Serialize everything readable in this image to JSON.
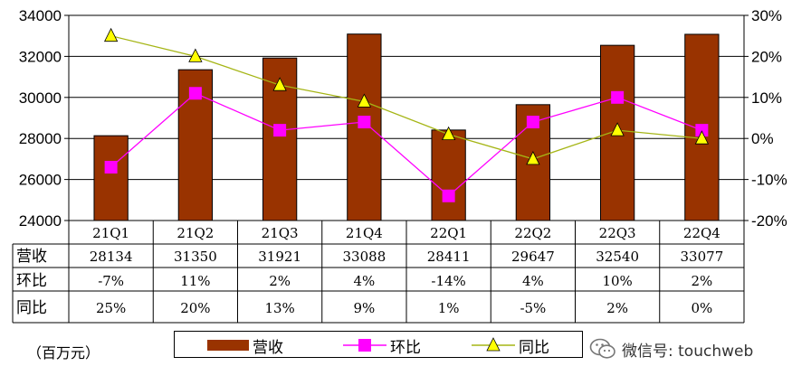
{
  "chart_data": {
    "type": "bar",
    "categories": [
      "21Q1",
      "21Q2",
      "21Q3",
      "21Q4",
      "22Q1",
      "22Q2",
      "22Q3",
      "22Q4"
    ],
    "series": [
      {
        "name": "营收",
        "type": "bar",
        "axis": "left",
        "color": "#993300",
        "values": [
          28134,
          31350,
          31921,
          33088,
          28411,
          29647,
          32540,
          33077
        ]
      },
      {
        "name": "环比",
        "type": "line",
        "axis": "right",
        "color": "#ff00ff",
        "marker": "square",
        "values": [
          -7,
          11,
          2,
          4,
          -14,
          4,
          10,
          2
        ]
      },
      {
        "name": "同比",
        "type": "line",
        "axis": "right",
        "color": "#a5b515",
        "marker_color": "#ffff00",
        "marker": "triangle",
        "values": [
          25,
          20,
          13,
          9,
          1,
          -5,
          2,
          0
        ]
      }
    ],
    "y_left": {
      "ylim": [
        24000,
        34000
      ],
      "ticks": [
        "24000",
        "26000",
        "28000",
        "30000",
        "32000",
        "34000"
      ]
    },
    "y_right": {
      "ylim": [
        -20,
        30
      ],
      "ticks": [
        "-20%",
        "-10%",
        "0%",
        "10%",
        "20%",
        "30%"
      ]
    },
    "table": {
      "row_labels": [
        "营收",
        "环比",
        "同比"
      ],
      "rows": [
        [
          "28134",
          "31350",
          "31921",
          "33088",
          "28411",
          "29647",
          "32540",
          "33077"
        ],
        [
          "-7%",
          "11%",
          "2%",
          "4%",
          "-14%",
          "4%",
          "10%",
          "2%"
        ],
        [
          "25%",
          "20%",
          "13%",
          "9%",
          "1%",
          "-5%",
          "2%",
          "0%"
        ]
      ]
    },
    "grid": true,
    "legend": "bottom"
  },
  "unit_label": "（百万元）",
  "legend": {
    "revenue": "营收",
    "qoq": "环比",
    "yoy": "同比"
  },
  "watermark": {
    "text": "微信号: touchweb",
    "icon": "wechat-icon"
  }
}
